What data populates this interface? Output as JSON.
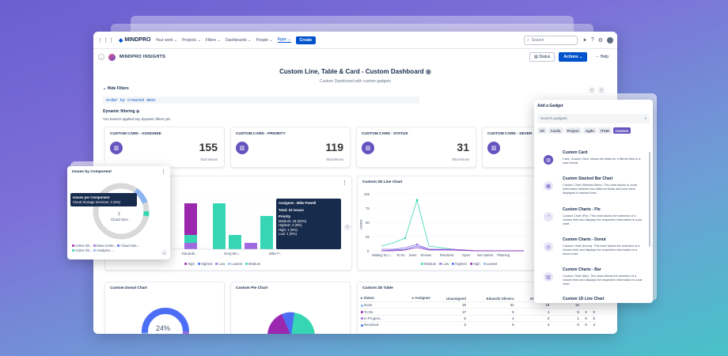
{
  "nav": {
    "brand": "MINDPRO",
    "links": [
      "Your work ⌄",
      "Projects ⌄",
      "Filters ⌄",
      "Dashboards ⌄",
      "People ⌄",
      "Apps ⌄"
    ],
    "create": "Create",
    "search_placeholder": "Search"
  },
  "header": {
    "brand": "MINDPRO INSIGHTS",
    "status_btn": "Status",
    "actions_btn": "Actions ⌄",
    "help_btn": "··· Help",
    "title": "Custom Line, Table & Card - Custom Dashboard",
    "subtitle": "Custom Dashboard with custom gadgets"
  },
  "filters": {
    "toggle": "Hide Filters",
    "query": "order by created desc",
    "dynamic_title": "Dynamic filtering",
    "dynamic_text": "You haven't applied any dynamic filters yet."
  },
  "cards": [
    {
      "title": "CUSTOM CARD - ASSIGNEE",
      "value": "155",
      "foot": "Total Issues"
    },
    {
      "title": "CUSTOM CARD - PRIORITY",
      "value": "119",
      "foot": "Total Issues"
    },
    {
      "title": "CUSTOM CARD - STATUS",
      "value": "31",
      "foot": "Total Issues"
    },
    {
      "title": "CUSTOM CARD - SEVER",
      "value": "",
      "foot": ""
    }
  ],
  "bar_chart": {
    "x_labels": [
      "Eduards...",
      "Greg Mo...",
      "Mike P..."
    ],
    "legend": [
      "High",
      "Highest",
      "Low",
      "Lowest",
      "Medium"
    ],
    "tooltip": {
      "title": "Assignee - Mike Powell",
      "total": "Total: 22 issues",
      "head": "Priority",
      "rows": [
        "Medium: 18 (82%)",
        "Highest: 2 (9%)",
        "High: 1 (5%)",
        "Low: 1 (5%)"
      ]
    }
  },
  "line_chart": {
    "title": "Custom 2D Line Chart",
    "ylabel": "Issues",
    "y_ticks": [
      "100",
      "75",
      "50",
      "25",
      "0"
    ],
    "x_labels": [
      "Waiting for c...",
      "To Do",
      "Done",
      "Review",
      "Resolved",
      "Open",
      "Not started",
      "Planning"
    ],
    "legend": [
      "Medium",
      "Low",
      "Highest",
      "High",
      "Lowest"
    ]
  },
  "issues_popup": {
    "title": "Issues by Component",
    "tip_title": "Issues per Component",
    "tip_value": "Cloud Storage Services: 2 (6%)",
    "center_value": "2",
    "center_label": "Cloud Stor...",
    "legend": [
      "Active Dir...",
      "Data Cente...",
      "Cloud Stor...",
      "Active Dir...",
      "Analytics ..."
    ]
  },
  "bottom": {
    "donut_title": "Custom Donut Chart",
    "donut_value": "24%",
    "pie_title": "Custom Pie Chart",
    "table_title": "Custom 2D Table",
    "table_headers": [
      "Status",
      "Assignee",
      "Unassigned",
      "Eduards Oliveira",
      "Greg Moore",
      "Mike Pow"
    ],
    "table_rows": [
      [
        "Done",
        "",
        "19",
        "31",
        "18",
        "16"
      ],
      [
        "To Do",
        "",
        "17",
        "5",
        "1",
        "5",
        "2",
        "0"
      ],
      [
        "In Progres...",
        "",
        "6",
        "4",
        "0",
        "1",
        "0",
        "5"
      ],
      [
        "Resolved",
        "",
        "3",
        "5",
        "4",
        "0",
        "0",
        "3"
      ]
    ]
  },
  "gadget": {
    "title": "Add a Gadget",
    "search_placeholder": "Search gadgets",
    "tabs": [
      "All",
      "Cards",
      "Project",
      "Agile",
      "ITSM",
      "Custom"
    ],
    "items": [
      {
        "name": "Custom Card",
        "desc": "Card, Custom Card, shows the totals for a filtered field in a card format."
      },
      {
        "name": "Custom Stacked Bar Chart",
        "desc": "Custom Chart (Stacked Bars). This chart allows to cross information between two different fields and have them displayed in stacked bars."
      },
      {
        "name": "Custom Charts - Pie",
        "desc": "Custom Chart (Pie). This chart allows the selection of a chosen field and displays the respective information in a pie chart."
      },
      {
        "name": "Custom Charts - Donut",
        "desc": "Custom Chart (Donut). This chart allows the selection of a chosen field and displays the respective information in a donut chart."
      },
      {
        "name": "Custom Charts - Bar",
        "desc": "Custom Chart (Bar). This chart allows the selection of a chosen field and displays the respective information in a bar chart."
      },
      {
        "name": "Custom 1D Line Chart",
        "desc": ""
      }
    ]
  },
  "colors": {
    "primary": "#0052cc",
    "purple": "#6554c0",
    "teal": "#36d6b5",
    "magenta": "#9b27af",
    "blue": "#4c6ef5"
  }
}
